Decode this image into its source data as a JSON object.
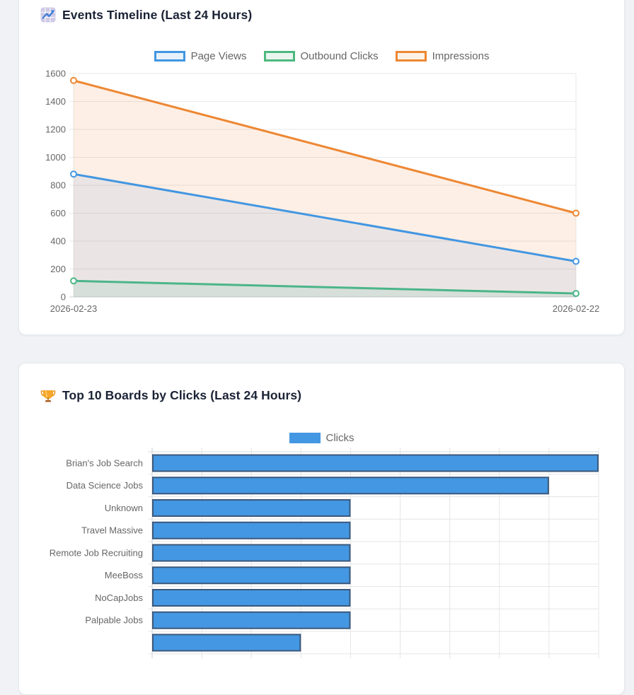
{
  "chart_data": [
    {
      "type": "line",
      "title": "Events Timeline (Last 24 Hours)",
      "x": [
        "2026-02-23",
        "2026-02-22"
      ],
      "ylim": [
        0,
        1600
      ],
      "ytick_step": 200,
      "grid": true,
      "legend_position": "top",
      "series": [
        {
          "name": "Page Views",
          "values": [
            880,
            255
          ],
          "color": "#4296e2",
          "area": "rgba(66,150,226,0.10)",
          "swatch": "#e8f1fb"
        },
        {
          "name": "Outbound Clicks",
          "values": [
            115,
            25
          ],
          "color": "#4cb97f",
          "area": "rgba(76,185,127,0.12)",
          "swatch": "#eaf5ef"
        },
        {
          "name": "Impressions",
          "values": [
            1550,
            600
          ],
          "color": "#ed8733",
          "area": "rgba(237,135,51,0.13)",
          "swatch": "#fdf2e6"
        }
      ]
    },
    {
      "type": "bar",
      "orientation": "horizontal",
      "title": "Top 10 Boards by Clicks (Last 24 Hours)",
      "legend": [
        "Clicks"
      ],
      "categories": [
        "Brian's Job Search",
        "Data Science Jobs",
        "Unknown",
        "Travel Massive",
        "Remote Job Recruiting",
        "MeeBoss",
        "NoCapJobs",
        "Palpable Jobs",
        ""
      ],
      "values": [
        9,
        8,
        4,
        4,
        4,
        4,
        4,
        4,
        3
      ],
      "xlim": [
        0,
        9
      ],
      "xtick_step": 1,
      "bar_color": "#4497e2",
      "bar_border": "#3b587c"
    }
  ],
  "colors": {
    "page_bg": "#f0f2f6",
    "card_bg": "#ffffff",
    "card_border": "#e6e8ed",
    "title_text": "#1a2235",
    "muted_text": "#666666",
    "grid_line": "#e9e9e9",
    "axis_line": "#c9ced4"
  }
}
